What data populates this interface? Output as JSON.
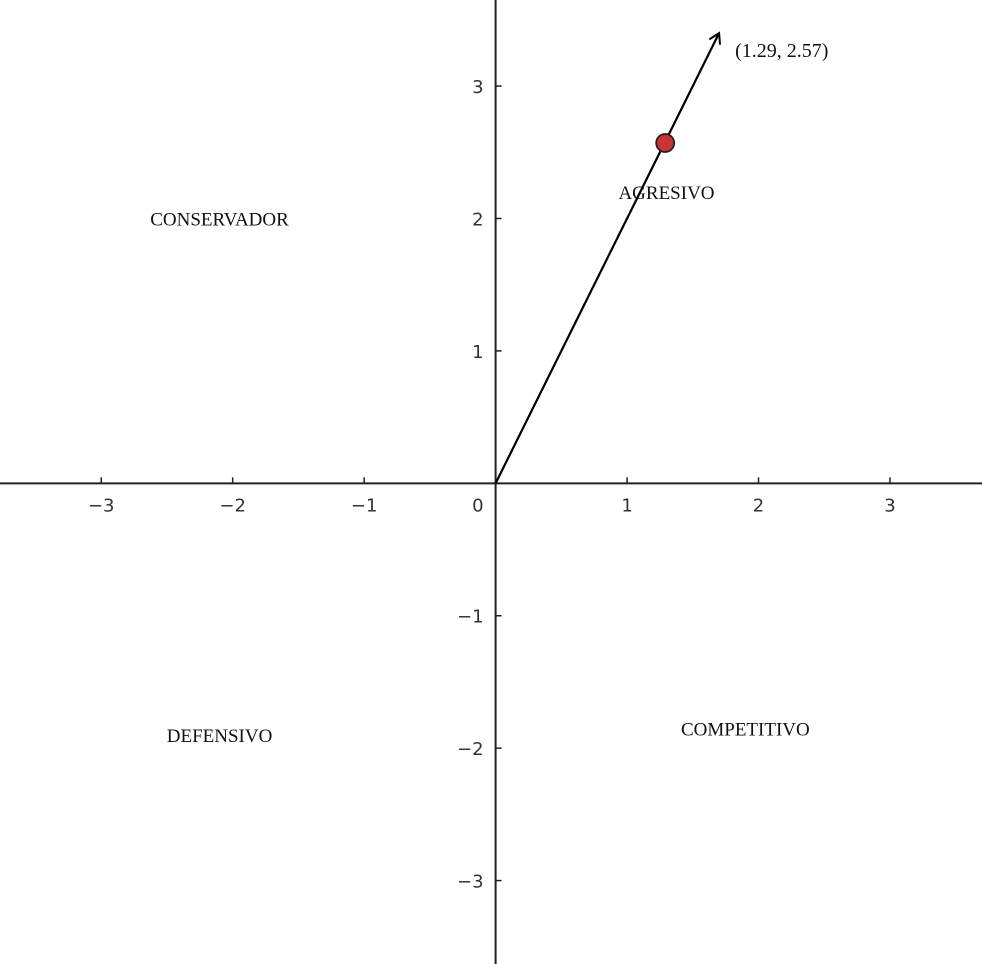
{
  "chart_data": {
    "type": "scatter",
    "title": "",
    "xlabel": "",
    "ylabel": "",
    "xlim": [
      -3.77,
      3.7
    ],
    "ylim": [
      -3.63,
      3.65
    ],
    "grid": false,
    "x_ticks": [
      -3,
      -2,
      -1,
      1,
      2,
      3
    ],
    "y_ticks": [
      -3,
      -2,
      -1,
      1,
      2,
      3
    ],
    "x_tick_labels": [
      "−3",
      "−2",
      "−1",
      "1",
      "2",
      "3"
    ],
    "y_tick_labels": [
      "−3",
      "−2",
      "−1",
      "1",
      "2",
      "3"
    ],
    "origin_label": "0",
    "vector": {
      "from": [
        0,
        0
      ],
      "to": [
        1.7,
        3.4
      ],
      "color": "#000000"
    },
    "point": {
      "x": 1.29,
      "y": 2.57,
      "label": "(1.29, 2.57)",
      "color": "#cc3333"
    },
    "quadrants": [
      {
        "name": "AGRESIVO",
        "x": 1.3,
        "y": 2.2
      },
      {
        "name": "CONSERVADOR",
        "x": -2.1,
        "y": 2.0
      },
      {
        "name": "DEFENSIVO",
        "x": -2.1,
        "y": -1.9
      },
      {
        "name": "COMPETITIVO",
        "x": 1.9,
        "y": -1.85
      }
    ]
  }
}
